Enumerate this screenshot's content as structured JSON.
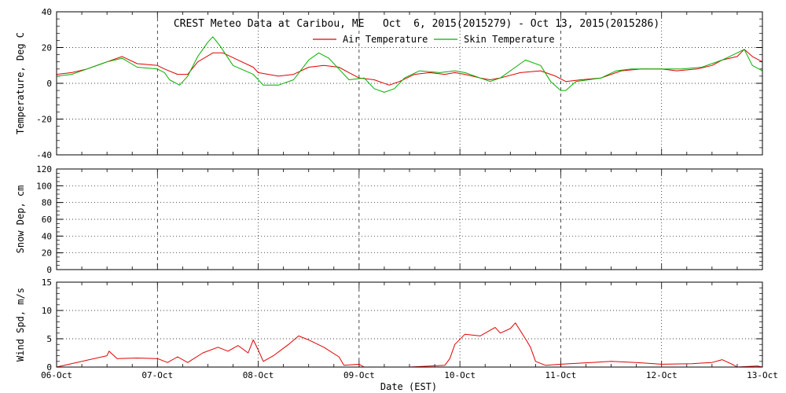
{
  "title": "CREST Meteo Data at Caribou, ME   Oct  6, 2015(2015279) - Oct 13, 2015(2015286)",
  "xlabel": "Date (EST)",
  "x_ticks": [
    "06-Oct",
    "07-Oct",
    "08-Oct",
    "09-Oct",
    "10-Oct",
    "11-Oct",
    "12-Oct",
    "13-Oct"
  ],
  "chart_data": [
    {
      "type": "line",
      "ylabel": "Temperature, Deg C",
      "ylim": [
        -40,
        40
      ],
      "yticks": [
        -40,
        -20,
        0,
        20,
        40
      ],
      "xlim": [
        0,
        7
      ],
      "x_units": "days since 06-Oct 00:00",
      "legend": "top-center",
      "grid": true,
      "series": [
        {
          "name": "Air Temperature",
          "color": "#e00000",
          "points": [
            [
              0,
              5
            ],
            [
              0.15,
              6
            ],
            [
              0.3,
              8
            ],
            [
              0.5,
              12
            ],
            [
              0.65,
              15
            ],
            [
              0.8,
              11
            ],
            [
              1.0,
              10
            ],
            [
              1.07,
              8
            ],
            [
              1.2,
              5
            ],
            [
              1.3,
              5
            ],
            [
              1.4,
              12
            ],
            [
              1.55,
              17
            ],
            [
              1.65,
              17
            ],
            [
              1.8,
              13
            ],
            [
              1.95,
              9
            ],
            [
              2.0,
              6
            ],
            [
              2.2,
              4
            ],
            [
              2.35,
              5
            ],
            [
              2.5,
              9
            ],
            [
              2.65,
              10
            ],
            [
              2.8,
              9
            ],
            [
              2.9,
              6
            ],
            [
              3.0,
              3
            ],
            [
              3.15,
              2
            ],
            [
              3.3,
              -1
            ],
            [
              3.4,
              1
            ],
            [
              3.55,
              5
            ],
            [
              3.7,
              6
            ],
            [
              3.85,
              5
            ],
            [
              3.95,
              6
            ],
            [
              4.05,
              5
            ],
            [
              4.2,
              3
            ],
            [
              4.3,
              2
            ],
            [
              4.4,
              3
            ],
            [
              4.6,
              6
            ],
            [
              4.8,
              7
            ],
            [
              4.95,
              4
            ],
            [
              5.05,
              1
            ],
            [
              5.2,
              2
            ],
            [
              5.4,
              3
            ],
            [
              5.6,
              7
            ],
            [
              5.8,
              8
            ],
            [
              6.0,
              8
            ],
            [
              6.15,
              7
            ],
            [
              6.35,
              8
            ],
            [
              6.5,
              10
            ],
            [
              6.6,
              13
            ],
            [
              6.75,
              15
            ],
            [
              6.82,
              19
            ],
            [
              6.9,
              15
            ],
            [
              7.0,
              12
            ]
          ]
        },
        {
          "name": "Skin Temperature",
          "color": "#00b000",
          "points": [
            [
              0,
              4
            ],
            [
              0.15,
              5
            ],
            [
              0.3,
              8
            ],
            [
              0.5,
              12
            ],
            [
              0.65,
              14
            ],
            [
              0.8,
              9
            ],
            [
              1.0,
              8
            ],
            [
              1.07,
              6
            ],
            [
              1.12,
              2
            ],
            [
              1.22,
              -1
            ],
            [
              1.3,
              4
            ],
            [
              1.4,
              15
            ],
            [
              1.5,
              23
            ],
            [
              1.55,
              26
            ],
            [
              1.62,
              21
            ],
            [
              1.75,
              10
            ],
            [
              1.95,
              5
            ],
            [
              2.05,
              -1
            ],
            [
              2.2,
              -1
            ],
            [
              2.35,
              2
            ],
            [
              2.5,
              13
            ],
            [
              2.6,
              17
            ],
            [
              2.7,
              14
            ],
            [
              2.8,
              8
            ],
            [
              2.9,
              2
            ],
            [
              3.05,
              3
            ],
            [
              3.15,
              -3
            ],
            [
              3.25,
              -5
            ],
            [
              3.35,
              -3
            ],
            [
              3.45,
              3
            ],
            [
              3.6,
              7
            ],
            [
              3.8,
              6
            ],
            [
              3.95,
              7
            ],
            [
              4.05,
              6
            ],
            [
              4.2,
              3
            ],
            [
              4.3,
              1
            ],
            [
              4.4,
              3
            ],
            [
              4.55,
              9
            ],
            [
              4.65,
              13
            ],
            [
              4.8,
              10
            ],
            [
              4.9,
              1
            ],
            [
              5.0,
              -4
            ],
            [
              5.05,
              -4
            ],
            [
              5.15,
              1
            ],
            [
              5.4,
              3
            ],
            [
              5.55,
              7
            ],
            [
              5.7,
              8
            ],
            [
              5.95,
              8
            ],
            [
              6.2,
              8
            ],
            [
              6.4,
              9
            ],
            [
              6.6,
              13
            ],
            [
              6.75,
              17
            ],
            [
              6.82,
              19
            ],
            [
              6.9,
              10
            ],
            [
              7.0,
              7
            ]
          ]
        }
      ]
    },
    {
      "type": "line",
      "ylabel": "Snow Dep, cm",
      "ylim": [
        0,
        120
      ],
      "yticks": [
        0,
        20,
        40,
        60,
        80,
        100,
        120
      ],
      "xlim": [
        0,
        7
      ],
      "grid": true,
      "series": []
    },
    {
      "type": "line",
      "ylabel": "Wind Spd, m/s",
      "ylim": [
        0,
        15
      ],
      "yticks": [
        0,
        5,
        10,
        15
      ],
      "xlim": [
        0,
        7
      ],
      "grid": true,
      "series": [
        {
          "color": "#e00000",
          "points": [
            [
              0,
              0
            ],
            [
              0.5,
              2
            ],
            [
              0.52,
              2.8
            ],
            [
              0.6,
              1.5
            ],
            [
              0.8,
              1.6
            ],
            [
              1.0,
              1.5
            ],
            [
              1.1,
              0.8
            ],
            [
              1.2,
              1.8
            ],
            [
              1.3,
              0.8
            ],
            [
              1.45,
              2.5
            ],
            [
              1.6,
              3.5
            ],
            [
              1.7,
              2.8
            ],
            [
              1.8,
              3.8
            ],
            [
              1.9,
              2.5
            ],
            [
              1.95,
              4.8
            ],
            [
              2.0,
              3
            ],
            [
              2.05,
              1
            ],
            [
              2.15,
              2
            ],
            [
              2.3,
              4
            ],
            [
              2.4,
              5.5
            ],
            [
              2.5,
              4.8
            ],
            [
              2.65,
              3.5
            ],
            [
              2.8,
              1.8
            ],
            [
              2.85,
              0.3
            ],
            [
              3.0,
              0.5
            ],
            [
              3.05,
              0
            ],
            [
              3.5,
              0
            ],
            [
              3.85,
              0.3
            ],
            [
              3.9,
              1.5
            ],
            [
              3.95,
              4
            ],
            [
              4.05,
              5.8
            ],
            [
              4.2,
              5.5
            ],
            [
              4.35,
              7
            ],
            [
              4.4,
              6
            ],
            [
              4.5,
              6.8
            ],
            [
              4.55,
              7.8
            ],
            [
              4.65,
              5
            ],
            [
              4.7,
              3.5
            ],
            [
              4.75,
              1
            ],
            [
              4.85,
              0.3
            ],
            [
              5.0,
              0.5
            ],
            [
              5.5,
              1
            ],
            [
              5.75,
              0.8
            ],
            [
              6.0,
              0.5
            ],
            [
              6.3,
              0.6
            ],
            [
              6.5,
              0.8
            ],
            [
              6.6,
              1.3
            ],
            [
              6.7,
              0.5
            ],
            [
              6.75,
              0
            ],
            [
              6.95,
              0.2
            ],
            [
              7.0,
              0
            ]
          ]
        }
      ]
    }
  ]
}
